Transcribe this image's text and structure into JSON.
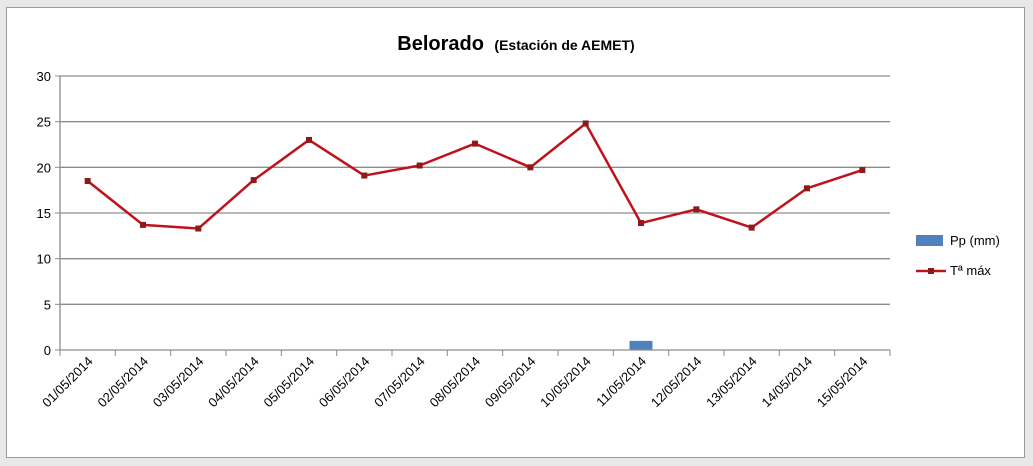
{
  "chart_data": {
    "type": "bar+line",
    "title": "Belorado",
    "subtitle": "(Estación de AEMET)",
    "categories": [
      "01/05/2014",
      "02/05/2014",
      "03/05/2014",
      "04/05/2014",
      "05/05/2014",
      "06/05/2014",
      "07/05/2014",
      "08/05/2014",
      "09/05/2014",
      "10/05/2014",
      "11/05/2014",
      "12/05/2014",
      "13/05/2014",
      "14/05/2014",
      "15/05/2014"
    ],
    "ylim": [
      0,
      30
    ],
    "yticks": [
      "0",
      "5",
      "10",
      "15",
      "20",
      "25",
      "30"
    ],
    "grid": true,
    "legend_position": "right",
    "series": [
      {
        "name": "Pp (mm)",
        "kind": "bar",
        "color": "#4f81bd",
        "values": [
          0,
          0,
          0,
          0,
          0,
          0,
          0,
          0,
          0,
          0,
          1,
          0,
          0,
          0,
          0
        ]
      },
      {
        "name": "Tª máx",
        "kind": "line",
        "color": "#c0121c",
        "values": [
          18.5,
          13.7,
          13.3,
          18.6,
          23.0,
          19.1,
          20.2,
          22.6,
          20.0,
          24.8,
          13.9,
          15.4,
          13.4,
          17.7,
          19.7
        ]
      }
    ]
  }
}
